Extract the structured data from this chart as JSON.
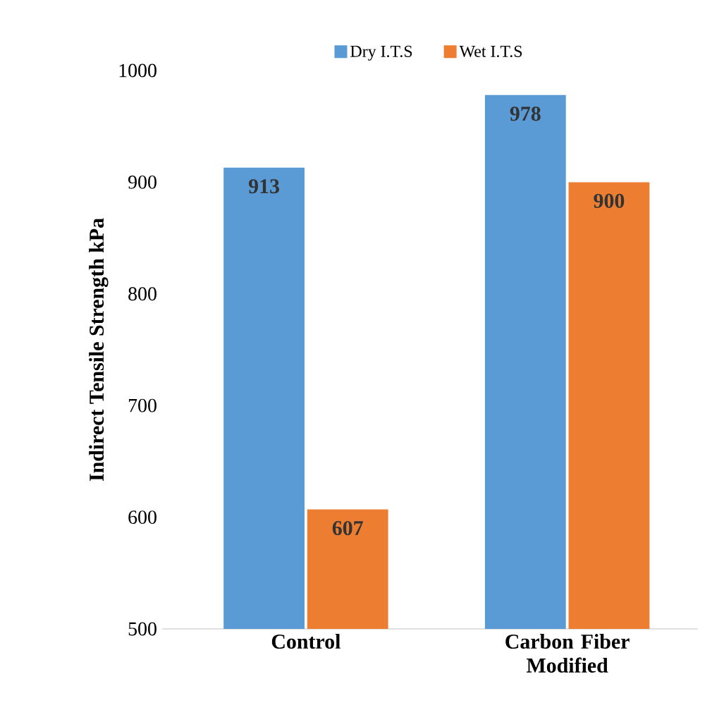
{
  "chart_data": {
    "type": "bar",
    "ylabel": "Indirect Tensile Strength kPa",
    "categories": [
      "Control",
      "Carbon Fiber Modified"
    ],
    "series": [
      {
        "name": "Dry I.T.S",
        "color": "#5b9bd5",
        "values": [
          913,
          978
        ]
      },
      {
        "name": "Wet I.T.S",
        "color": "#ed7d31",
        "values": [
          607,
          900
        ]
      }
    ],
    "ylim": [
      500,
      1000
    ],
    "yticks": [
      500,
      600,
      700,
      800,
      900,
      1000
    ],
    "data_labels": true,
    "legend": "top",
    "grid": false
  }
}
